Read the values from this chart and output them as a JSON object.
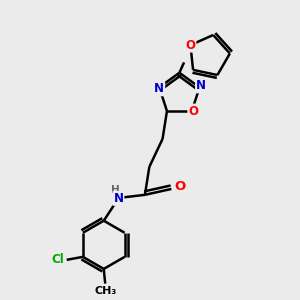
{
  "bg_color": "#ebebeb",
  "bond_color": "#000000",
  "bond_width": 1.8,
  "atom_colors": {
    "C": "#000000",
    "N": "#0000cc",
    "O": "#ff0000",
    "Cl": "#00aa00",
    "H": "#666666"
  },
  "font_size": 8.5,
  "fig_size": [
    3.0,
    3.0
  ],
  "dpi": 100,
  "xlim": [
    0,
    10
  ],
  "ylim": [
    0,
    10
  ]
}
